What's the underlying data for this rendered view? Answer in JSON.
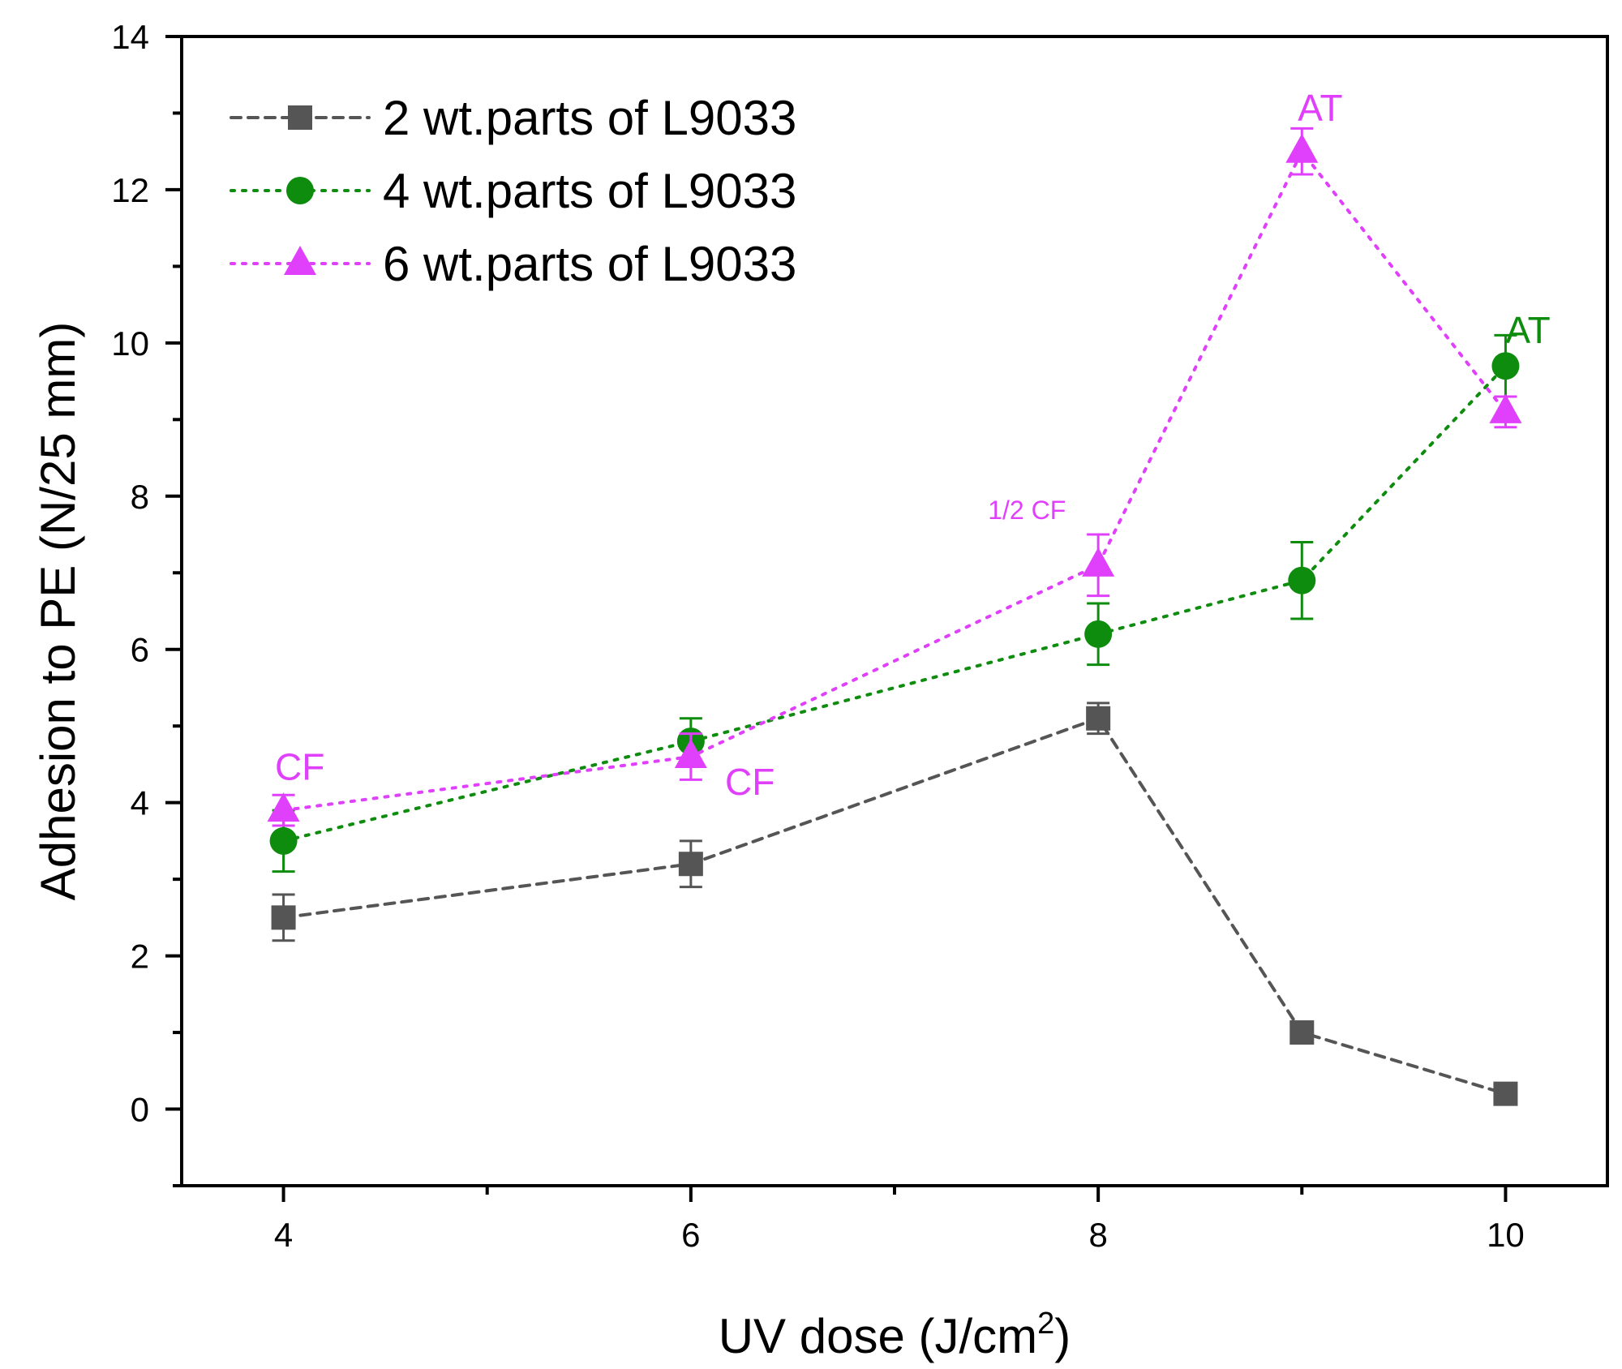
{
  "chart_data": {
    "type": "line",
    "title": "",
    "xlabel": "UV dose (J/cm",
    "xlabel_sup": "2",
    "xlabel_close": ")",
    "ylabel": "Adhesion to PE (N/25 mm)",
    "xlim": [
      3.5,
      10.5
    ],
    "ylim": [
      -1,
      14
    ],
    "xticks": [
      4,
      6,
      8,
      10
    ],
    "xtick_labels": [
      "4",
      "6",
      "8",
      "10"
    ],
    "xminor": [
      5,
      7,
      9
    ],
    "yticks": [
      0,
      2,
      4,
      6,
      8,
      10,
      12,
      14
    ],
    "ytick_labels": [
      "0",
      "2",
      "4",
      "6",
      "8",
      "10",
      "12",
      "14"
    ],
    "yminor": [
      -1,
      1,
      3,
      5,
      7,
      9,
      11,
      13
    ],
    "grid": false,
    "legend_position": "top-left",
    "series": [
      {
        "name": "2 wt.parts of L9033",
        "marker": "square",
        "line": "dashed",
        "color": "#555555",
        "x": [
          4,
          6,
          8,
          9,
          10
        ],
        "y": [
          2.5,
          3.2,
          5.1,
          1.0,
          0.2
        ],
        "err": [
          0.3,
          0.3,
          0.2,
          0.0,
          0.0
        ]
      },
      {
        "name": "4 wt.parts of L9033",
        "marker": "circle",
        "line": "dotted",
        "color": "#0e8c0e",
        "x": [
          4,
          6,
          8,
          9,
          10
        ],
        "y": [
          3.5,
          4.8,
          6.2,
          6.9,
          9.7
        ],
        "err": [
          0.4,
          0.3,
          0.4,
          0.5,
          0.4
        ]
      },
      {
        "name": "6 wt.parts of L9033",
        "marker": "triangle",
        "line": "dotted",
        "color": "#e040fb",
        "x": [
          4,
          6,
          8,
          9,
          10
        ],
        "y": [
          3.9,
          4.6,
          7.1,
          12.5,
          9.1
        ],
        "err": [
          0.2,
          0.3,
          0.4,
          0.3,
          0.2
        ]
      }
    ],
    "annotations": [
      {
        "text": "CF",
        "x": 4.08,
        "y": 4.3,
        "color": "#e040fb",
        "size": "large",
        "anchor": "middle"
      },
      {
        "text": "CF",
        "x": 6.29,
        "y": 4.1,
        "color": "#e040fb",
        "size": "large",
        "anchor": "middle"
      },
      {
        "text": "1/2 CF",
        "x": 7.65,
        "y": 7.7,
        "color": "#e040fb",
        "size": "small",
        "anchor": "middle"
      },
      {
        "text": "AT",
        "x": 9.09,
        "y": 12.9,
        "color": "#e040fb",
        "size": "large",
        "anchor": "middle"
      },
      {
        "text": "AT",
        "x": 10.11,
        "y": 10.0,
        "color": "#0e8c0e",
        "size": "large",
        "anchor": "middle"
      }
    ]
  }
}
